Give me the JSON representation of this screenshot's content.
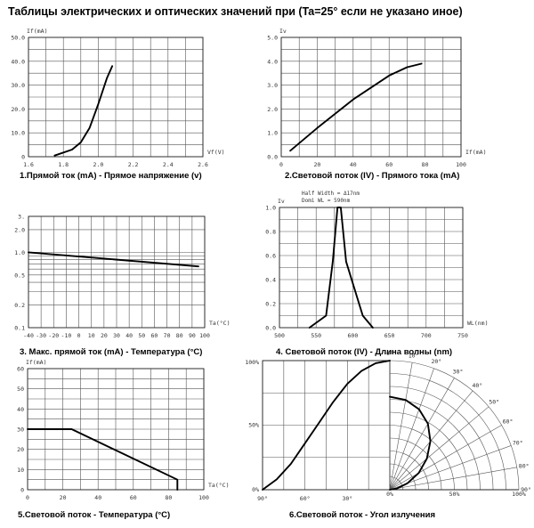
{
  "page": {
    "title": "Таблицы электрических и оптических значений при (Ta=25° если не указано иное)"
  },
  "chart_data": [
    {
      "id": "c1",
      "type": "line",
      "caption": "1.Прямой ток (mA) -  Прямое напряжение (v)",
      "ylabel": "If(mA)",
      "xlabel": "Vf(V)",
      "xlim": [
        1.6,
        2.6
      ],
      "ylim": [
        0,
        50
      ],
      "xticks": [
        "1.6",
        "1.8",
        "2.0",
        "2.2",
        "2.4",
        "2.6"
      ],
      "yticks": [
        "0",
        "10.0",
        "20.0",
        "30.0",
        "40.0",
        "50.0"
      ],
      "series": [
        {
          "x": [
            1.75,
            1.85,
            1.9,
            1.95,
            2.0,
            2.05,
            2.08
          ],
          "y": [
            0.5,
            3,
            6,
            12,
            22,
            33,
            38
          ]
        }
      ]
    },
    {
      "id": "c2",
      "type": "line",
      "caption": "2.Световой поток (IV) - Прямого тока (mA)",
      "ylabel": "Iv",
      "xlabel": "If(mA)",
      "xlim": [
        0,
        100
      ],
      "ylim": [
        0,
        5
      ],
      "xticks": [
        "0",
        "20",
        "40",
        "60",
        "80",
        "100"
      ],
      "yticks": [
        "0.0",
        "1.0",
        "2.0",
        "3.0",
        "4.0",
        "5.0"
      ],
      "series": [
        {
          "x": [
            5,
            20,
            40,
            60,
            70,
            78
          ],
          "y": [
            0.25,
            1.2,
            2.4,
            3.4,
            3.75,
            3.9
          ]
        }
      ]
    },
    {
      "id": "c3",
      "type": "line",
      "caption": "3. Макс. прямой ток (mA) - Температура (°C)",
      "ylabel": "",
      "xlabel": "Ta(°C)",
      "xlim": [
        -40,
        100
      ],
      "ylim": [
        0.1,
        3.0
      ],
      "yscale": "log",
      "xticks": [
        "-40",
        "-30",
        "-20",
        "-10",
        "0",
        "10",
        "20",
        "30",
        "40",
        "50",
        "60",
        "70",
        "80",
        "90",
        "100"
      ],
      "yticks": [
        "0.1",
        "0.2",
        "0.5",
        "1.0",
        "2.0",
        "3."
      ],
      "series": [
        {
          "x": [
            -40,
            95
          ],
          "y": [
            1.0,
            0.65
          ]
        }
      ]
    },
    {
      "id": "c4",
      "type": "line",
      "caption": "4. Световой поток (IV) - Длина волны (nm)",
      "ylabel": "Iv",
      "xlabel": "WL(nm)",
      "annotations": [
        "Half Width = Δ17nm",
        "Domi WL = 590nm"
      ],
      "xlim": [
        500,
        775
      ],
      "ylim": [
        0,
        1
      ],
      "xticks": [
        "500",
        "550",
        "600",
        "650",
        "700",
        "750"
      ],
      "yticks": [
        "0.0",
        "0.2",
        "0.4",
        "0.6",
        "0.8",
        "1.0"
      ],
      "series": [
        {
          "x": [
            545,
            570,
            580,
            587,
            592,
            600,
            625,
            640
          ],
          "y": [
            0,
            0.1,
            0.55,
            1.0,
            1.0,
            0.55,
            0.1,
            0
          ]
        }
      ]
    },
    {
      "id": "c5",
      "type": "line",
      "caption": "5.Световой поток - Температура (°C)",
      "ylabel": "If(mA)",
      "xlabel": "Ta(°C)",
      "xlim": [
        0,
        100
      ],
      "ylim": [
        0,
        60
      ],
      "xticks": [
        "0",
        "20",
        "40",
        "60",
        "80",
        "100"
      ],
      "yticks": [
        "0",
        "10",
        "20",
        "30",
        "40",
        "50",
        "60"
      ],
      "series": [
        {
          "x": [
            0,
            25,
            85,
            85
          ],
          "y": [
            30,
            30,
            5,
            0
          ]
        }
      ]
    },
    {
      "id": "c6",
      "type": "line",
      "caption": "6.Световой поток - Угол излучения",
      "percent_labels": [
        "100%",
        "50%",
        "0%",
        "0%",
        "50%",
        "100%"
      ],
      "angle_labels": [
        "90°",
        "60°",
        "30°",
        "0°",
        "10°",
        "20°",
        "30°",
        "40°",
        "50°",
        "60°",
        "70°",
        "80°",
        "90°"
      ],
      "series": [
        {
          "x": [
            0,
            10,
            20,
            30,
            40,
            50,
            60,
            70,
            80,
            90
          ],
          "y": [
            1.0,
            0.98,
            0.92,
            0.82,
            0.68,
            0.52,
            0.36,
            0.2,
            0.08,
            0
          ]
        }
      ]
    }
  ]
}
